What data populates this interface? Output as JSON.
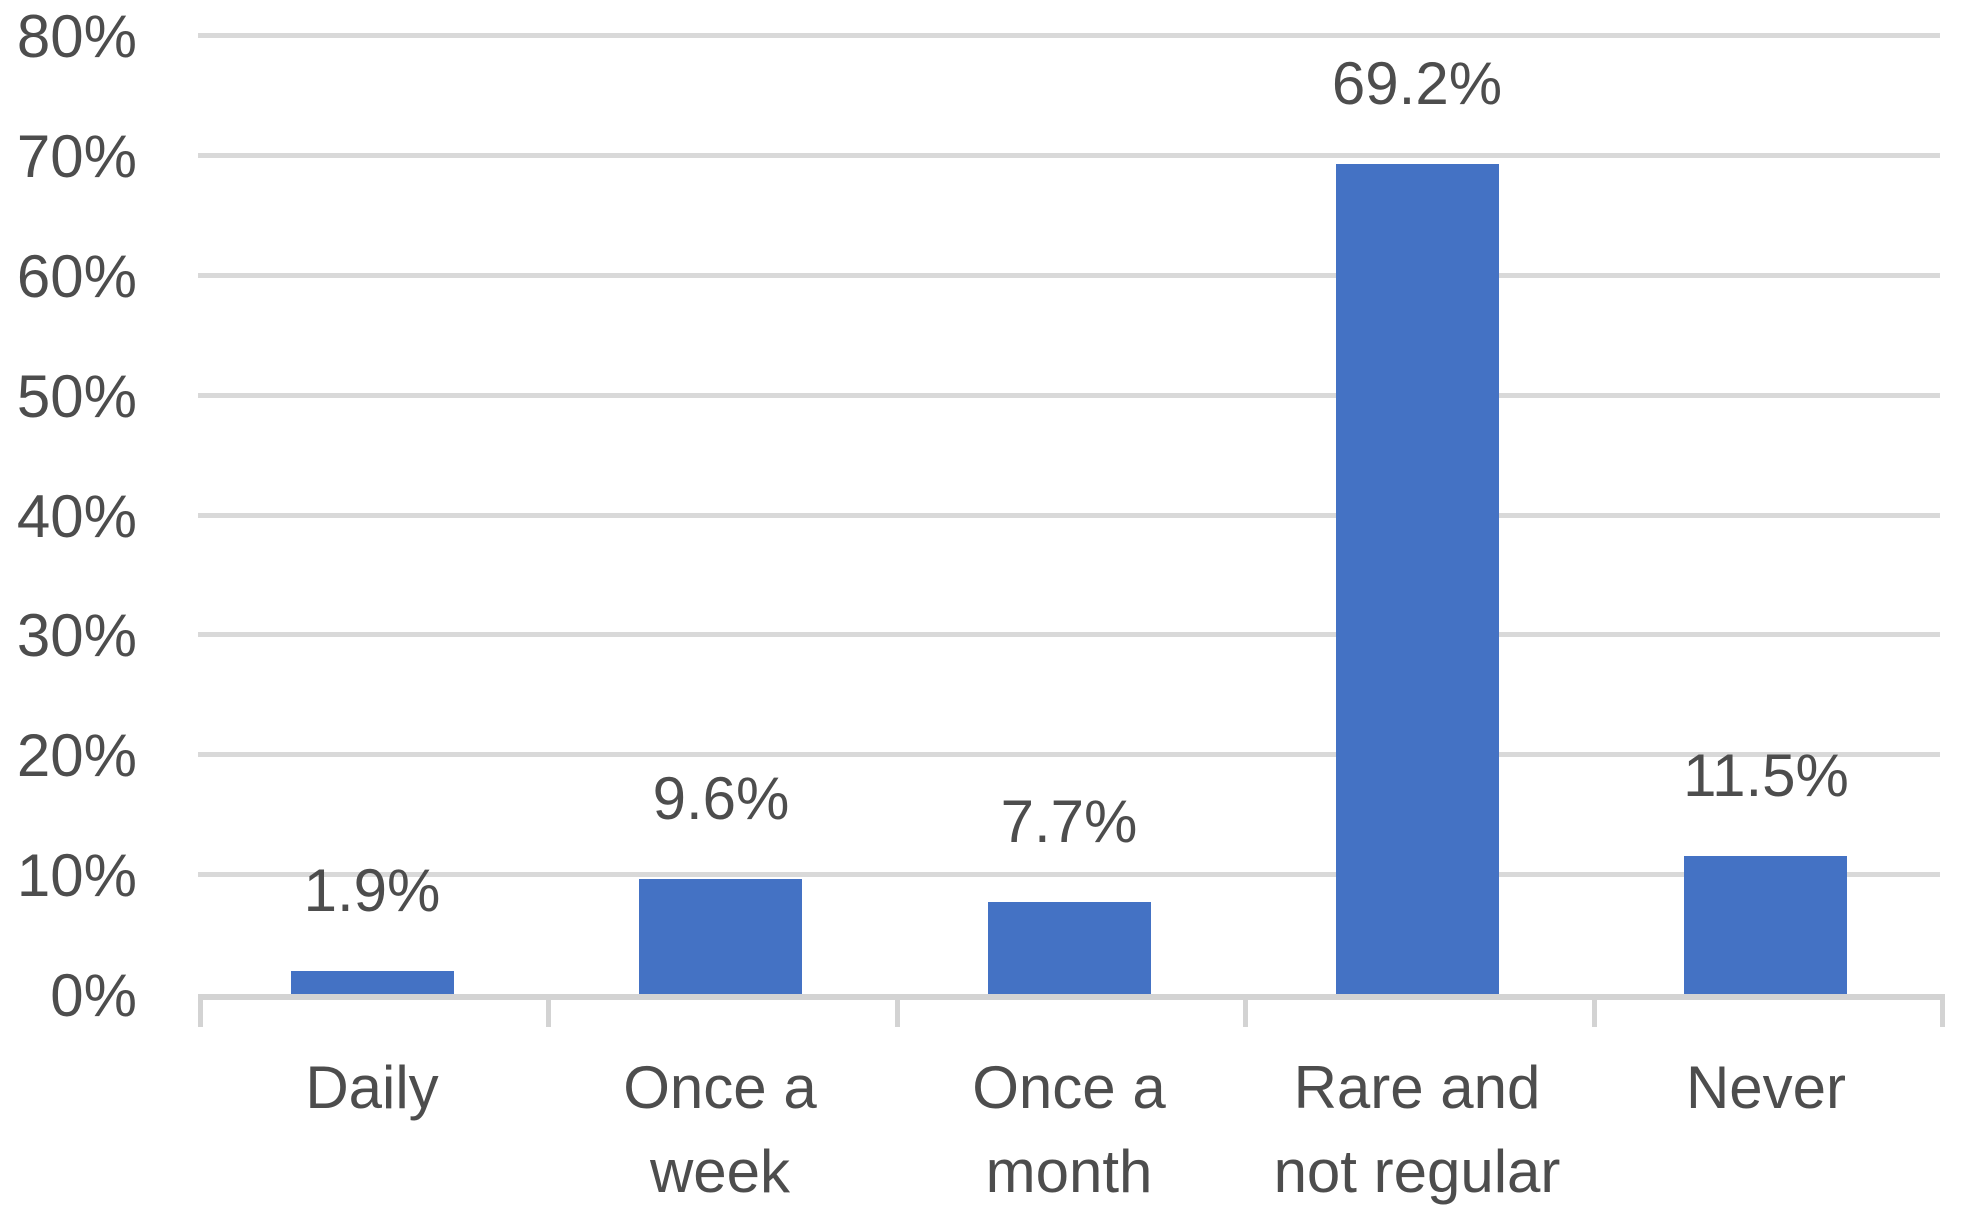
{
  "chart_data": {
    "type": "bar",
    "title": "",
    "xlabel": "",
    "ylabel": "",
    "categories": [
      "Daily",
      "Once a week",
      "Once a month",
      "Rare and not regular",
      "Never"
    ],
    "category_label_lines": [
      [
        "Daily"
      ],
      [
        "Once a",
        "week"
      ],
      [
        "Once a",
        "month"
      ],
      [
        "Rare and",
        "not regular"
      ],
      [
        "Never"
      ]
    ],
    "values": [
      1.9,
      9.6,
      7.7,
      69.2,
      11.5
    ],
    "data_labels": [
      "1.9%",
      "9.6%",
      "7.7%",
      "69.2%",
      "11.5%"
    ],
    "ylim": [
      0,
      80
    ],
    "y_tick_interval": 10,
    "y_ticks": [
      {
        "value": 80,
        "label": "80%"
      },
      {
        "value": 70,
        "label": "70%"
      },
      {
        "value": 60,
        "label": "60%"
      },
      {
        "value": 50,
        "label": "50%"
      },
      {
        "value": 40,
        "label": "40%"
      },
      {
        "value": 30,
        "label": "30%"
      },
      {
        "value": 20,
        "label": "20%"
      },
      {
        "value": 10,
        "label": "10%"
      },
      {
        "value": 0,
        "label": "0%"
      }
    ],
    "grid": true,
    "legend": "none",
    "colors": {
      "bar": "#4472C4",
      "gridline": "#D9D9D9",
      "axis_line": "#D3D3D3",
      "tick": "#D3D3D3",
      "text": "#4D4D4D",
      "background": "#FFFFFF"
    }
  }
}
